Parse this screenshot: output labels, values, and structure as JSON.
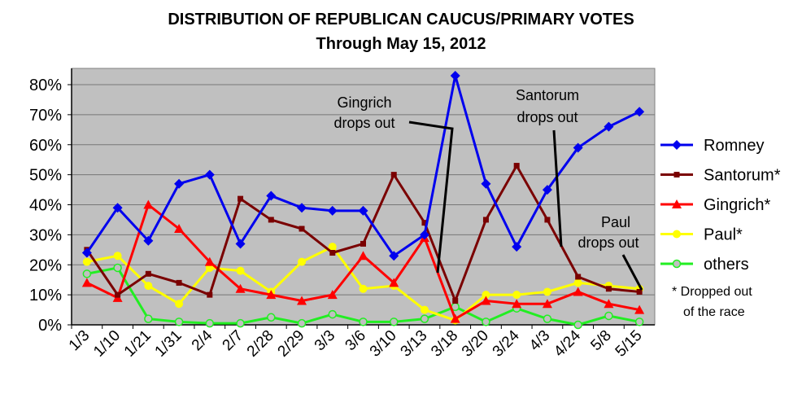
{
  "chart_data": {
    "type": "line",
    "title": "DISTRIBUTION OF REPUBLICAN CAUCUS/PRIMARY VOTES",
    "subtitle": "Through May 15, 2012",
    "xlabel": "",
    "ylabel": "",
    "ylim": [
      0,
      85
    ],
    "yticks": [
      "0%",
      "10%",
      "20%",
      "30%",
      "40%",
      "50%",
      "60%",
      "70%",
      "80%"
    ],
    "grid": true,
    "legend_position": "right",
    "categories": [
      "1/3",
      "1/10",
      "1/21",
      "1/31",
      "2/4",
      "2/7",
      "2/28",
      "2/29",
      "3/3",
      "3/6",
      "3/10",
      "3/13",
      "3/18",
      "3/20",
      "3/24",
      "4/3",
      "4/24",
      "5/8",
      "5/15"
    ],
    "series": [
      {
        "name": "Romney",
        "color": "#0000ee",
        "marker": "diamond",
        "values": [
          24,
          39,
          28,
          47,
          50,
          27,
          43,
          39,
          38,
          38,
          23,
          30,
          83,
          47,
          26,
          45,
          59,
          66,
          71
        ]
      },
      {
        "name": "Santorum*",
        "color": "#7a0000",
        "marker": "square",
        "values": [
          25,
          10,
          17,
          14,
          10,
          42,
          35,
          32,
          24,
          27,
          50,
          34,
          8,
          35,
          53,
          35,
          16,
          12,
          11
        ]
      },
      {
        "name": "Gingrich*",
        "color": "#ff0000",
        "marker": "triangle",
        "values": [
          14,
          9,
          40,
          32,
          21,
          12,
          10,
          8,
          10,
          23,
          14,
          29,
          2,
          8,
          7,
          7,
          11,
          7,
          5
        ]
      },
      {
        "name": "Paul*",
        "color": "#ffff00",
        "marker": "circle",
        "values": [
          21,
          23,
          13,
          7,
          19,
          18,
          11,
          21,
          26,
          12,
          13,
          5,
          1.5,
          10,
          10,
          11,
          14,
          13,
          12
        ]
      },
      {
        "name": "others",
        "color": "#22ee22",
        "marker": "open-circle",
        "values": [
          17,
          19,
          2,
          1,
          0.5,
          0.5,
          2.5,
          0.5,
          3.5,
          1,
          1,
          2,
          6,
          1,
          5.5,
          2,
          0,
          3,
          1
        ]
      }
    ],
    "annotations": [
      {
        "lines": [
          "Gingrich",
          "drops out"
        ],
        "category": "3/18"
      },
      {
        "lines": [
          "Santorum",
          "drops out"
        ],
        "category": "4/24"
      },
      {
        "lines": [
          "Paul",
          "drops out"
        ],
        "category": "5/15"
      }
    ],
    "footnote": [
      "* Dropped out",
      "of the race"
    ]
  }
}
